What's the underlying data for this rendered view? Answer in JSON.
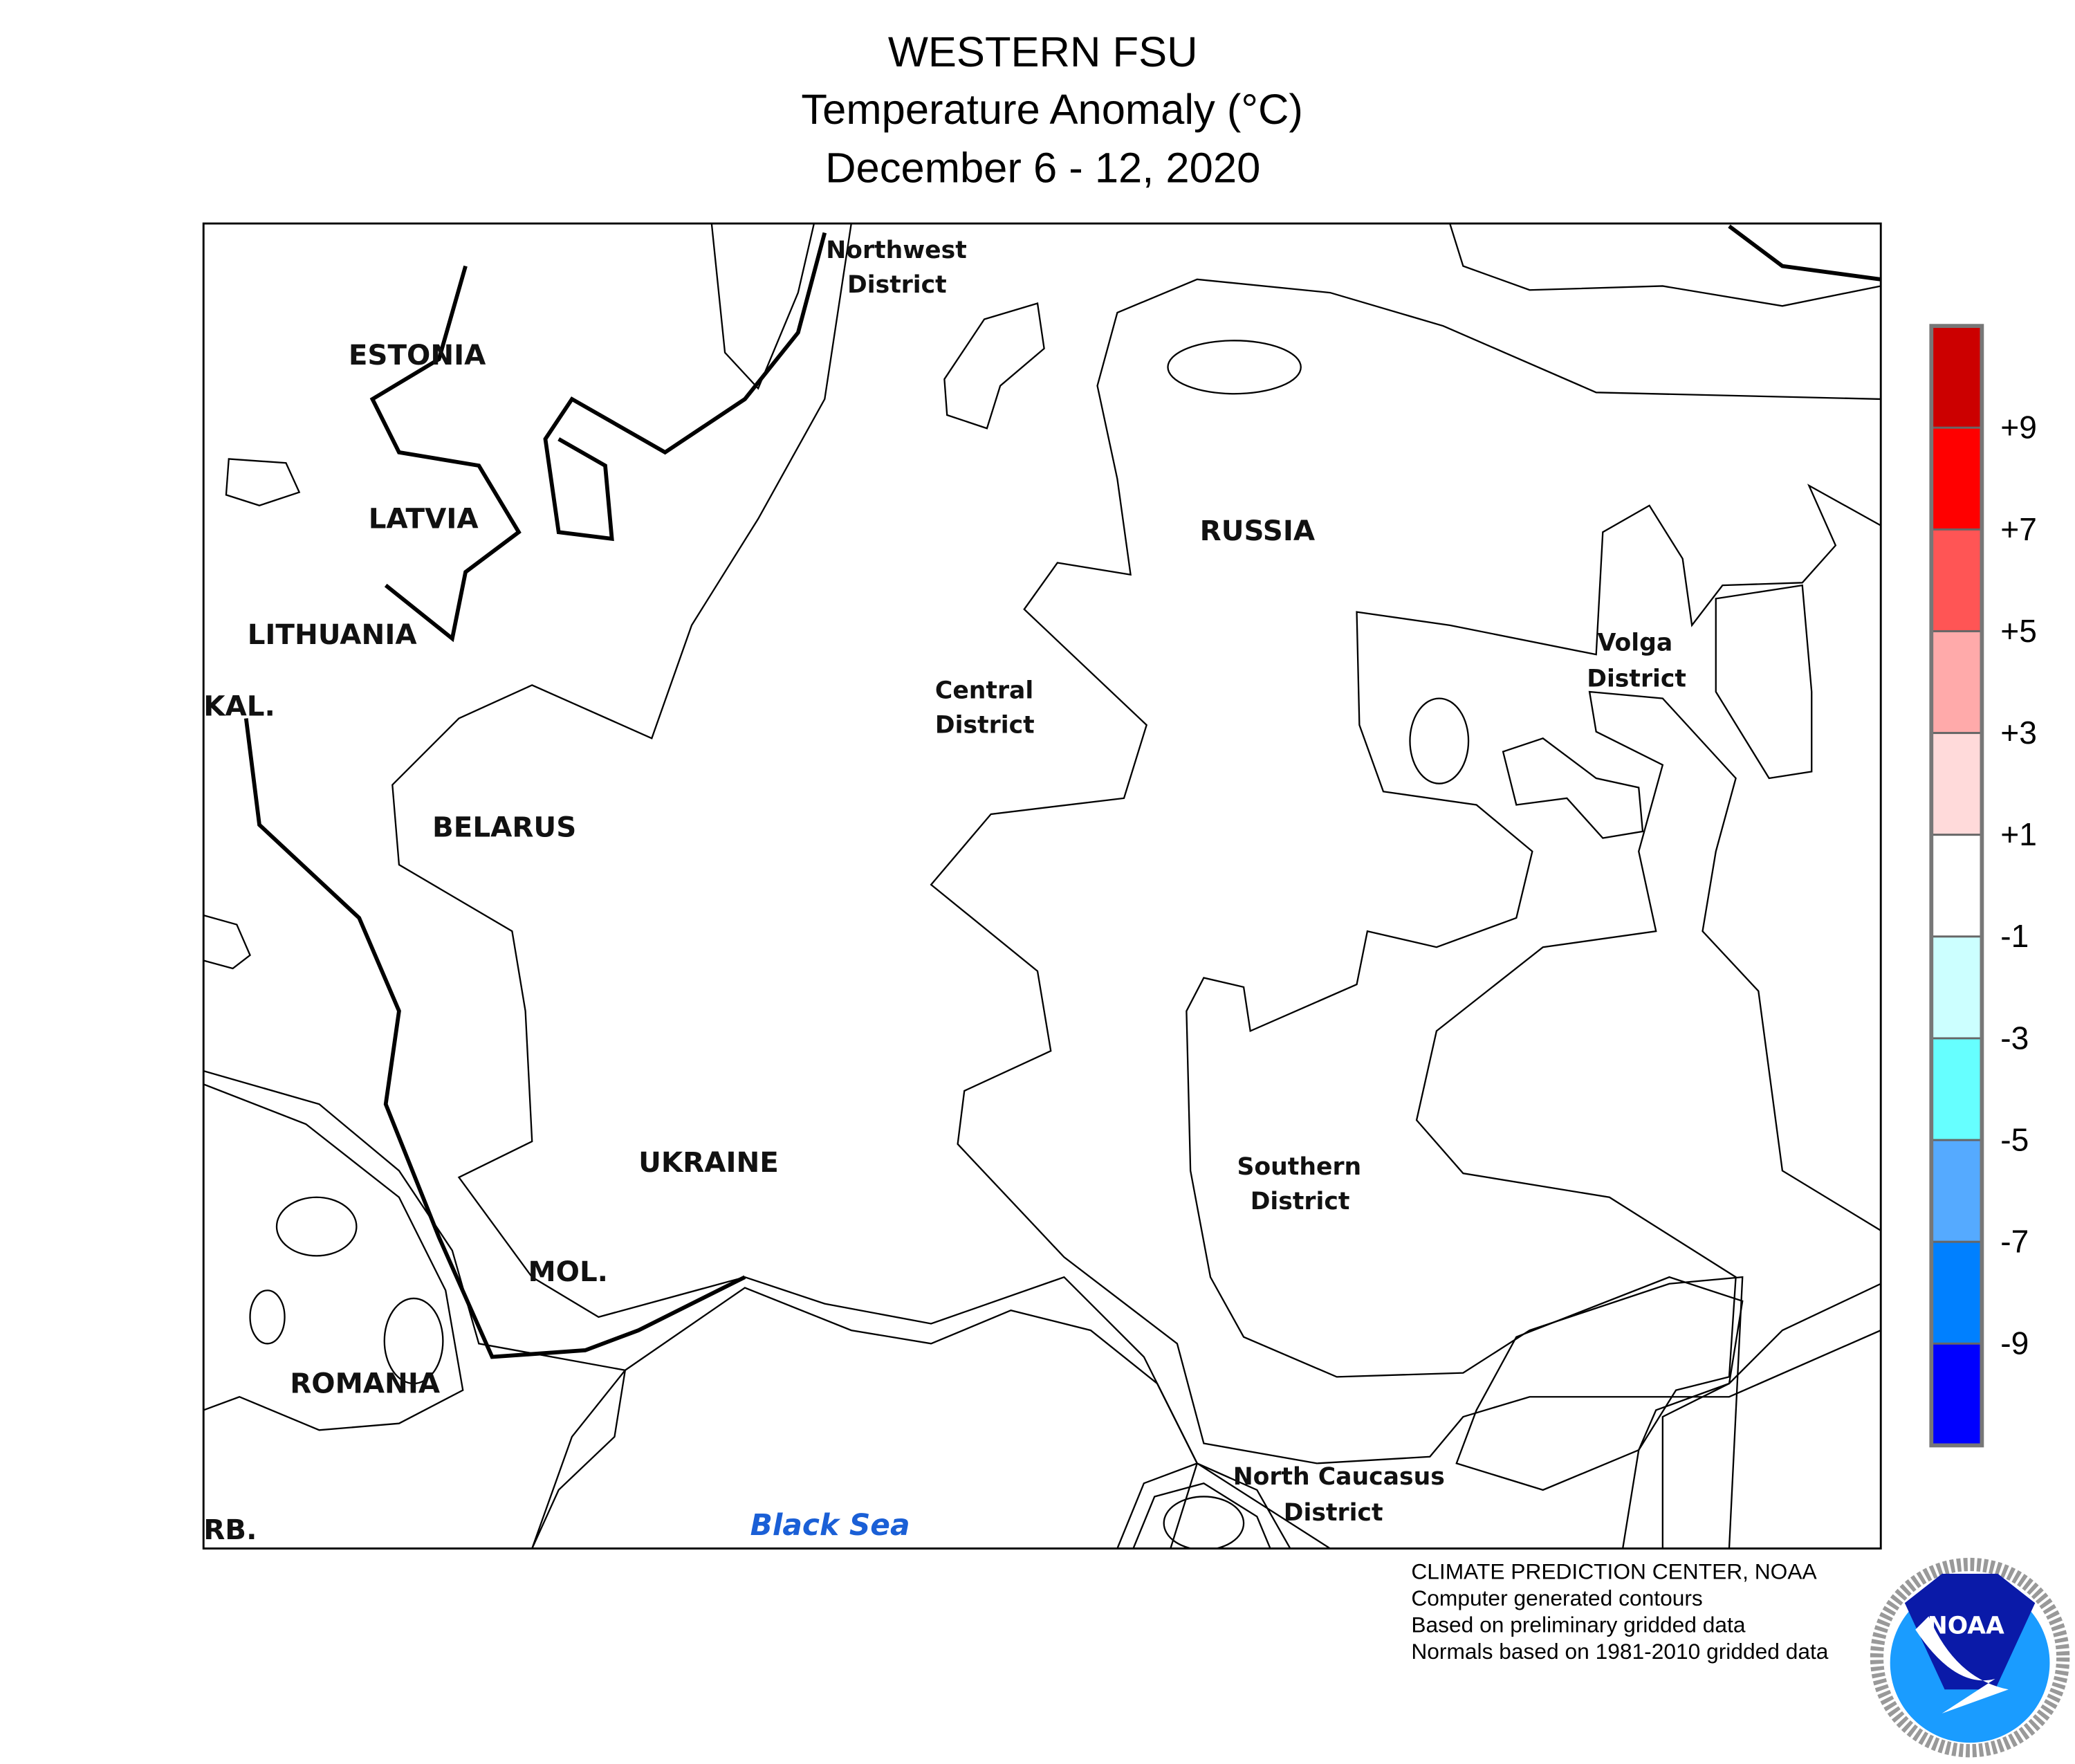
{
  "title": {
    "line1": "WESTERN FSU",
    "line2": "Temperature Anomaly (°C)",
    "line3": "December 6 - 12, 2020"
  },
  "map_labels": {
    "estonia": "ESTONIA",
    "latvia": "LATVIA",
    "lithuania": "LITHUANIA",
    "kaliningrad": "KAL.",
    "belarus": "BELARUS",
    "ukraine": "UKRAINE",
    "moldova": "MOL.",
    "romania": "ROMANIA",
    "serbia": "RB.",
    "russia": "RUSSIA",
    "northwest_1": "Northwest",
    "northwest_2": "District",
    "central_1": "Central",
    "central_2": "District",
    "volga_1": "Volga",
    "volga_2": "District",
    "southern_1": "Southern",
    "southern_2": "District",
    "ncaucasus_1": "North Caucasus",
    "ncaucasus_2": "District",
    "black_sea": "Black Sea"
  },
  "colorbar": {
    "colors": [
      "#cc0000",
      "#ff0000",
      "#ff5555",
      "#ffaaaa",
      "#ffdada",
      "#ffffff",
      "#ccffff",
      "#66ffff",
      "#55aaff",
      "#0080ff",
      "#0000ff"
    ],
    "labels": [
      "+9",
      "+7",
      "+5",
      "+3",
      "+1",
      "-1",
      "-3",
      "-5",
      "-7",
      "-9"
    ]
  },
  "footer": {
    "line1": "CLIMATE PREDICTION CENTER, NOAA",
    "line2": "Computer generated contours",
    "line3": "Based on preliminary gridded data",
    "line4": "Normals based on 1981-2010 gridded data"
  },
  "logo": {
    "text": "NOAA",
    "ring_text": "NATIONAL OCEANIC AND ATMOSPHERIC ADMINISTRATION · U.S. DEPARTMENT OF COMMERCE"
  }
}
